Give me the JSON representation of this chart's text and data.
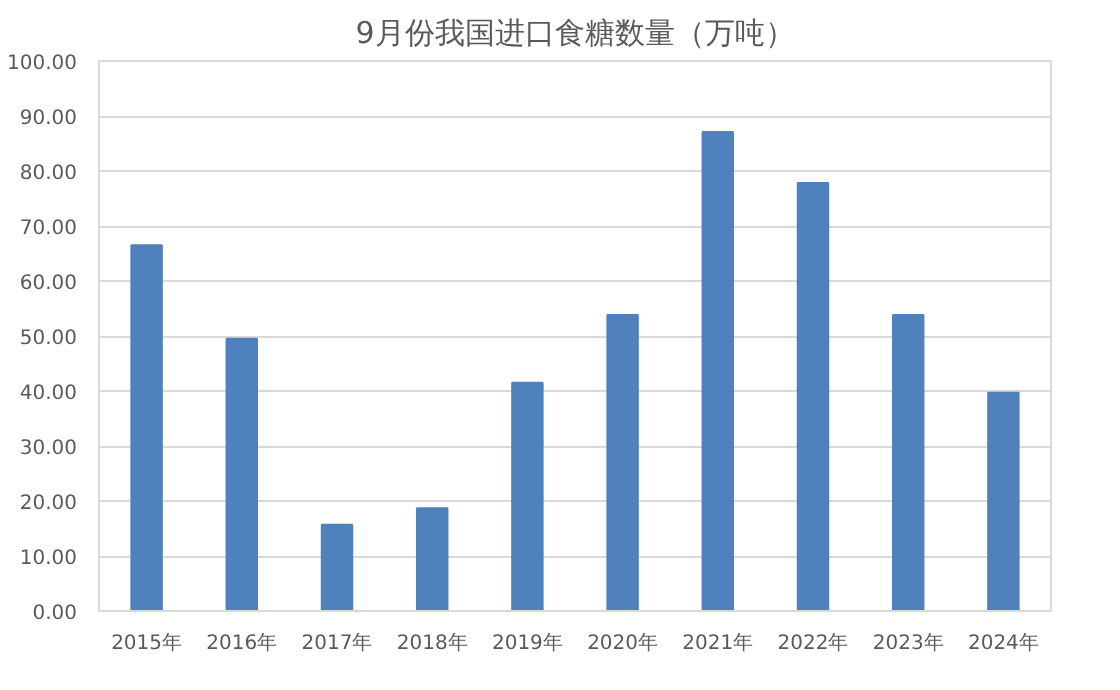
{
  "chart_data": {
    "type": "bar",
    "title": "9月份我国进口食糖数量（万吨）",
    "categories": [
      "2015年",
      "2016年",
      "2017年",
      "2018年",
      "2019年",
      "2020年",
      "2021年",
      "2022年",
      "2023年",
      "2024年"
    ],
    "values": [
      66.5,
      49.5,
      15.7,
      18.7,
      41.5,
      53.8,
      87.1,
      77.8,
      53.8,
      39.7
    ],
    "color": "#4f81bd",
    "ylim": [
      0,
      100
    ],
    "yticks": [
      {
        "value": 0,
        "label": "0.00"
      },
      {
        "value": 10,
        "label": "10.00"
      },
      {
        "value": 20,
        "label": "20.00"
      },
      {
        "value": 30,
        "label": "30.00"
      },
      {
        "value": 40,
        "label": "40.00"
      },
      {
        "value": 50,
        "label": "50.00"
      },
      {
        "value": 60,
        "label": "60.00"
      },
      {
        "value": 70,
        "label": "70.00"
      },
      {
        "value": 80,
        "label": "80.00"
      },
      {
        "value": 90,
        "label": "90.00"
      },
      {
        "value": 100,
        "label": "100.00"
      }
    ],
    "grid": "y"
  }
}
